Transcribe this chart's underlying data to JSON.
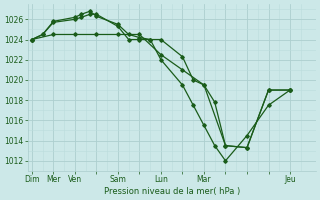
{
  "xlabel": "Pression niveau de la mer( hPa )",
  "bg_color": "#cce8e8",
  "grid_color_major": "#aacccc",
  "grid_color_minor": "#bbdddd",
  "line_color": "#1a5c1a",
  "ylim": [
    1011.0,
    1027.5
  ],
  "yticks": [
    1012,
    1014,
    1016,
    1018,
    1020,
    1022,
    1024,
    1026
  ],
  "xlim": [
    -0.2,
    13.2
  ],
  "xtick_labels": [
    "Dim",
    "Mer",
    "Ven",
    "",
    "Sam",
    "",
    "Lun",
    "",
    "Mar",
    "",
    "",
    "",
    "Jeu"
  ],
  "xtick_positions": [
    0,
    1,
    2,
    3,
    4,
    5,
    6,
    7,
    8,
    9,
    10,
    11,
    12
  ],
  "series": [
    {
      "x": [
        0,
        0.5,
        1,
        2,
        2.3,
        2.7,
        3.0,
        4.0,
        4.5,
        5.0,
        5.5,
        6.0,
        7.0,
        7.5,
        8.0,
        8.5,
        9.0,
        10.0,
        11.0,
        12.0
      ],
      "y": [
        1024.0,
        1024.5,
        1025.8,
        1026.2,
        1026.5,
        1026.8,
        1026.3,
        1025.5,
        1024.5,
        1024.2,
        1024.0,
        1024.0,
        1022.3,
        1020.0,
        1019.5,
        1017.8,
        1013.5,
        1013.3,
        1019.0,
        1019.0
      ]
    },
    {
      "x": [
        0,
        0.5,
        1,
        2,
        2.3,
        2.7,
        3.0,
        4.0,
        4.5,
        5.0,
        5.5,
        6.0,
        7.0,
        7.5,
        8.0,
        8.5,
        9.0,
        10.0,
        11.0,
        12.0
      ],
      "y": [
        1024.0,
        1024.5,
        1025.7,
        1026.0,
        1026.2,
        1026.5,
        1026.5,
        1025.3,
        1024.0,
        1024.0,
        1024.0,
        1022.0,
        1019.5,
        1017.5,
        1015.5,
        1013.5,
        1012.0,
        1014.5,
        1017.5,
        1019.0
      ]
    },
    {
      "x": [
        0,
        1,
        2,
        3,
        4,
        5,
        6,
        7,
        8,
        9,
        10,
        11,
        12
      ],
      "y": [
        1024.0,
        1024.5,
        1024.5,
        1024.5,
        1024.5,
        1024.5,
        1022.5,
        1021.0,
        1019.5,
        1013.5,
        1013.3,
        1019.0,
        1019.0
      ]
    }
  ]
}
